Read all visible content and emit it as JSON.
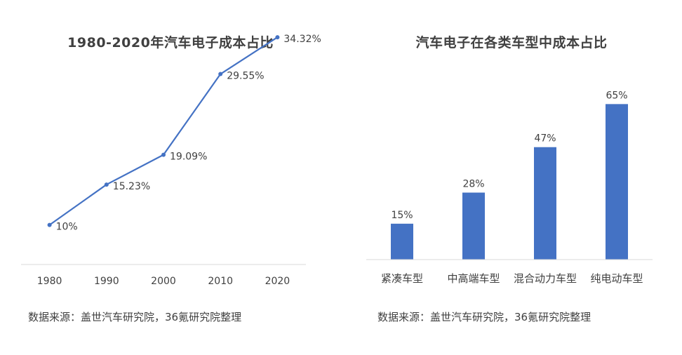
{
  "chart_data": [
    {
      "type": "line",
      "title": "1980-2020年汽车电子成本占比",
      "categories": [
        "1980",
        "1990",
        "2000",
        "2010",
        "2020"
      ],
      "series": [
        {
          "values": [
            10,
            15.23,
            19.09,
            29.55,
            34.32
          ],
          "labels": [
            "10%",
            "15.23%",
            "19.09%",
            "29.55%",
            "34.32%"
          ]
        }
      ],
      "xlabel": "",
      "ylabel": "",
      "ylim": [
        0,
        50
      ],
      "grid": false,
      "color": "#4472C4",
      "source": "数据来源：盖世汽车研究院，36氪研究院整理"
    },
    {
      "type": "bar",
      "title": "汽车电子在各类车型中成本占比",
      "categories": [
        "紧凑车型",
        "中高端车型",
        "混合动力车型",
        "纯电动车型"
      ],
      "values": [
        15,
        28,
        47,
        65
      ],
      "labels": [
        "15%",
        "28%",
        "47%",
        "65%"
      ],
      "xlabel": "",
      "ylabel": "",
      "ylim": [
        0,
        70
      ],
      "grid": false,
      "color": "#4472C4",
      "source": "数据来源：盖世汽车研究院，36氪研究院整理"
    }
  ]
}
